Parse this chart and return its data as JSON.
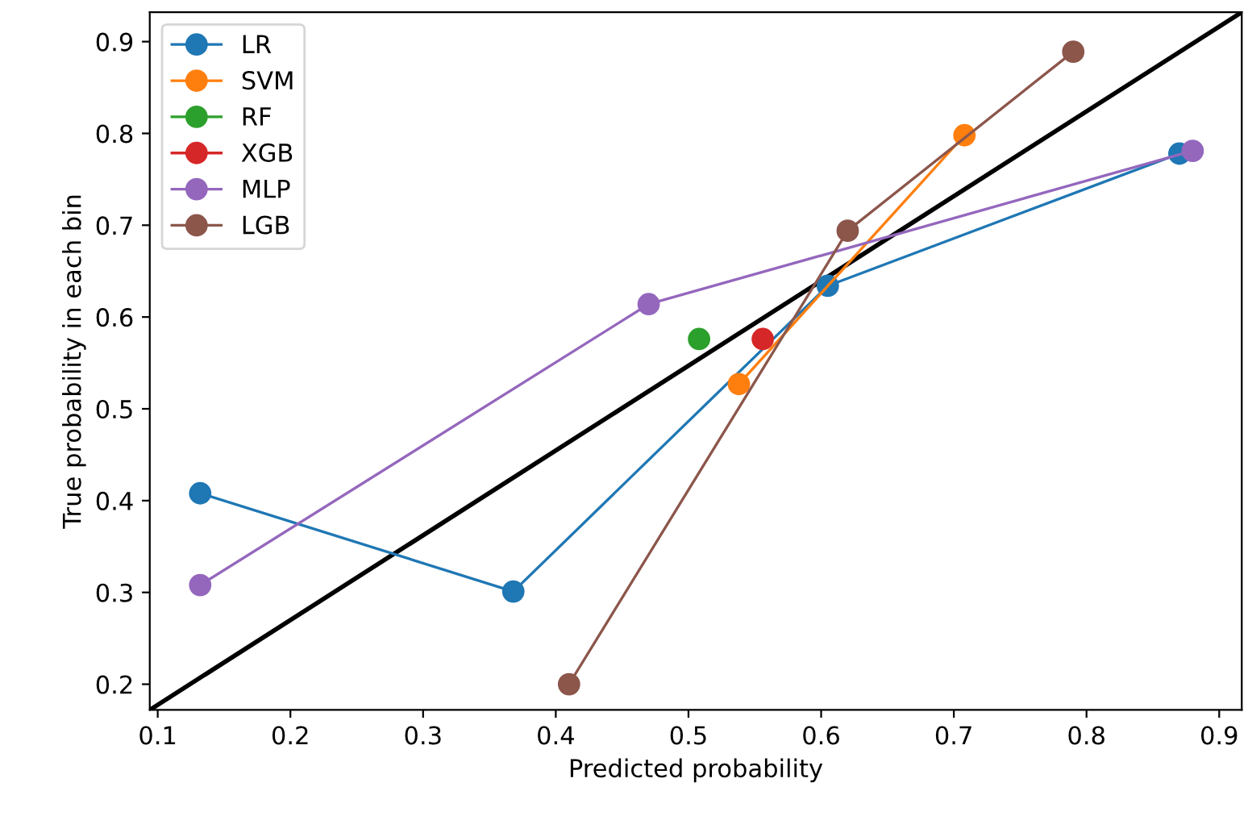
{
  "chart_data": {
    "type": "line",
    "xlabel": "Predicted probability",
    "ylabel": "True probability in each bin",
    "xlim": [
      0.094,
      0.917
    ],
    "ylim": [
      0.172,
      0.932
    ],
    "xticks": [
      0.1,
      0.2,
      0.3,
      0.4,
      0.5,
      0.6,
      0.7,
      0.8,
      0.9
    ],
    "yticks": [
      0.2,
      0.3,
      0.4,
      0.5,
      0.6,
      0.7,
      0.8,
      0.9
    ],
    "marker": "circle",
    "legend": "top left",
    "grid": false,
    "series": [
      {
        "name": "LR",
        "color": "#1f77b4",
        "x": [
          0.132,
          0.368,
          0.605,
          0.87
        ],
        "values": [
          0.408,
          0.301,
          0.634,
          0.778
        ]
      },
      {
        "name": "SVM",
        "color": "#ff7f0e",
        "x": [
          0.538,
          0.708
        ],
        "values": [
          0.527,
          0.798
        ]
      },
      {
        "name": "RF",
        "color": "#2ca02c",
        "x": [
          0.508
        ],
        "values": [
          0.576
        ]
      },
      {
        "name": "XGB",
        "color": "#d62728",
        "x": [
          0.556
        ],
        "values": [
          0.576
        ]
      },
      {
        "name": "MLP",
        "color": "#9467bd",
        "x": [
          0.132,
          0.47,
          0.88
        ],
        "values": [
          0.308,
          0.614,
          0.781
        ]
      },
      {
        "name": "LGB",
        "color": "#8c564b",
        "x": [
          0.41,
          0.62,
          0.79
        ],
        "values": [
          0.2,
          0.694,
          0.889
        ]
      },
      {
        "color": "#000000",
        "marker": "none",
        "x": [
          0.094,
          0.917
        ],
        "values": [
          0.172,
          0.932
        ]
      }
    ]
  }
}
